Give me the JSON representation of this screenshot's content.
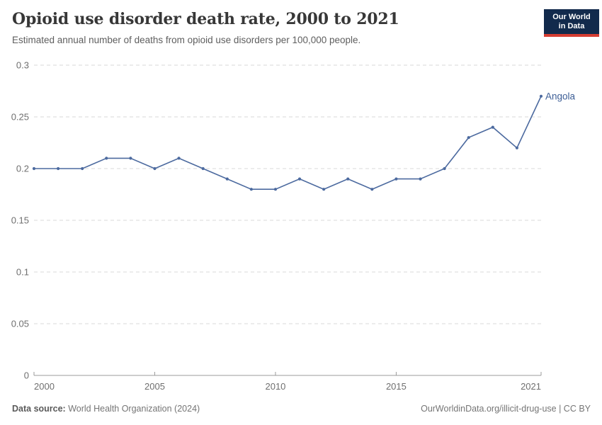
{
  "chart_data": {
    "type": "line",
    "title": "Opioid use disorder death rate, 2000 to 2021",
    "subtitle": "Estimated annual number of deaths from opioid use disorders per 100,000 people.",
    "xlabel": "",
    "ylabel": "",
    "xlim": [
      2000,
      2021
    ],
    "ylim": [
      0,
      0.3
    ],
    "grid": "horizontal-dashed",
    "legend_position": "end-of-line-label",
    "series": [
      {
        "name": "Angola",
        "x": [
          2000,
          2001,
          2002,
          2003,
          2004,
          2005,
          2006,
          2007,
          2008,
          2009,
          2010,
          2011,
          2012,
          2013,
          2014,
          2015,
          2016,
          2017,
          2018,
          2019,
          2020,
          2021
        ],
        "values": [
          0.2,
          0.2,
          0.2,
          0.21,
          0.21,
          0.2,
          0.21,
          0.2,
          0.19,
          0.18,
          0.18,
          0.19,
          0.18,
          0.19,
          0.18,
          0.19,
          0.19,
          0.2,
          0.23,
          0.24,
          0.22,
          0.27
        ]
      }
    ],
    "y_ticks": [
      {
        "value": 0,
        "label": "0"
      },
      {
        "value": 0.05,
        "label": "0.05"
      },
      {
        "value": 0.1,
        "label": "0.1"
      },
      {
        "value": 0.15,
        "label": "0.15"
      },
      {
        "value": 0.2,
        "label": "0.2"
      },
      {
        "value": 0.25,
        "label": "0.25"
      },
      {
        "value": 0.3,
        "label": "0.3"
      }
    ],
    "x_ticks": [
      {
        "value": 2000,
        "label": "2000"
      },
      {
        "value": 2005,
        "label": "2005"
      },
      {
        "value": 2010,
        "label": "2010"
      },
      {
        "value": 2015,
        "label": "2015"
      },
      {
        "value": 2021,
        "label": "2021"
      }
    ]
  },
  "logo": {
    "line1": "Our World",
    "line2": "in Data"
  },
  "footer": {
    "source_label": "Data source:",
    "source_value": "World Health Organization (2024)",
    "link": "OurWorldinData.org/illicit-drug-use | CC BY"
  },
  "colors": {
    "line": "#4c6a9f",
    "marker": "#4c6a9f",
    "series_label": "#3d5e96",
    "grid": "#dadada",
    "axis": "#9b9b9b",
    "tick_text": "#6f6f6f",
    "logo_bg": "#122a4c",
    "logo_stripe": "#d53d32"
  }
}
